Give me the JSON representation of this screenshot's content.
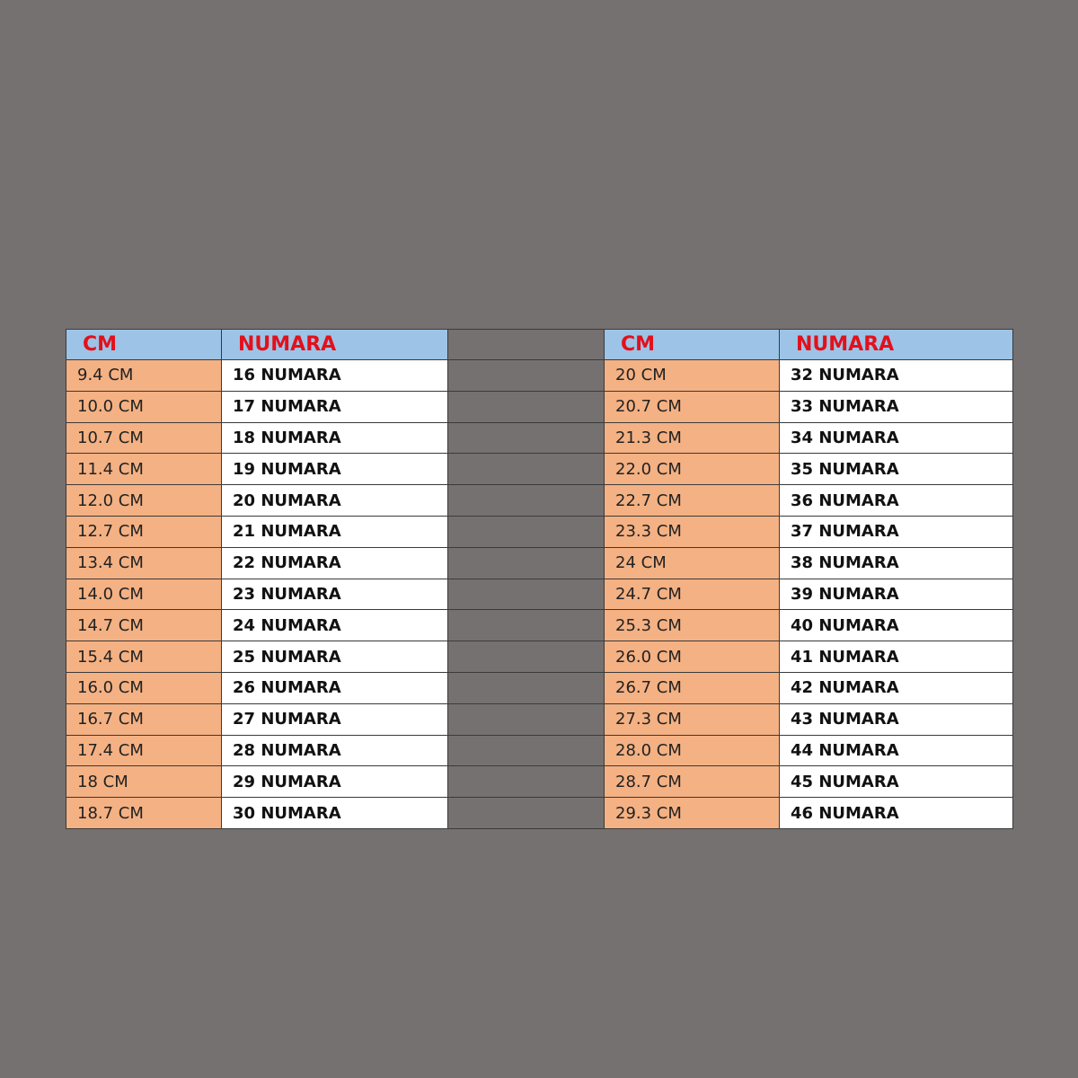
{
  "tables": [
    {
      "header": [
        "CM",
        "NUMARA"
      ],
      "rows": [
        [
          "9.4 CM",
          "16 NUMARA"
        ],
        [
          "10.0 CM",
          "17 NUMARA"
        ],
        [
          "10.7 CM",
          "18 NUMARA"
        ],
        [
          "11.4 CM",
          "19 NUMARA"
        ],
        [
          "12.0 CM",
          "20 NUMARA"
        ],
        [
          "12.7 CM",
          "21 NUMARA"
        ],
        [
          "13.4 CM",
          "22 NUMARA"
        ],
        [
          "14.0 CM",
          "23 NUMARA"
        ],
        [
          "14.7 CM",
          "24 NUMARA"
        ],
        [
          "15.4 CM",
          "25 NUMARA"
        ],
        [
          "16.0 CM",
          "26 NUMARA"
        ],
        [
          "16.7 CM",
          "27 NUMARA"
        ],
        [
          "17.4 CM",
          "28 NUMARA"
        ],
        [
          "18 CM",
          "29 NUMARA"
        ],
        [
          "18.7 CM",
          "30 NUMARA"
        ]
      ]
    },
    {
      "header": [
        "CM",
        "NUMARA"
      ],
      "rows": [
        [
          "20 CM",
          "32 NUMARA"
        ],
        [
          "20.7 CM",
          "33 NUMARA"
        ],
        [
          "21.3 CM",
          "34 NUMARA"
        ],
        [
          "22.0 CM",
          "35 NUMARA"
        ],
        [
          "22.7 CM",
          "36 NUMARA"
        ],
        [
          "23.3 CM",
          "37 NUMARA"
        ],
        [
          "24 CM",
          "38 NUMARA"
        ],
        [
          "24.7 CM",
          "39 NUMARA"
        ],
        [
          "25.3 CM",
          "40 NUMARA"
        ],
        [
          "26.0 CM",
          "41 NUMARA"
        ],
        [
          "26.7 CM",
          "42 NUMARA"
        ],
        [
          "27.3 CM",
          "43 NUMARA"
        ],
        [
          "28.0 CM",
          "44 NUMARA"
        ],
        [
          "28.7 CM",
          "45 NUMARA"
        ],
        [
          "29.3 CM",
          "46 NUMARA"
        ]
      ]
    }
  ]
}
